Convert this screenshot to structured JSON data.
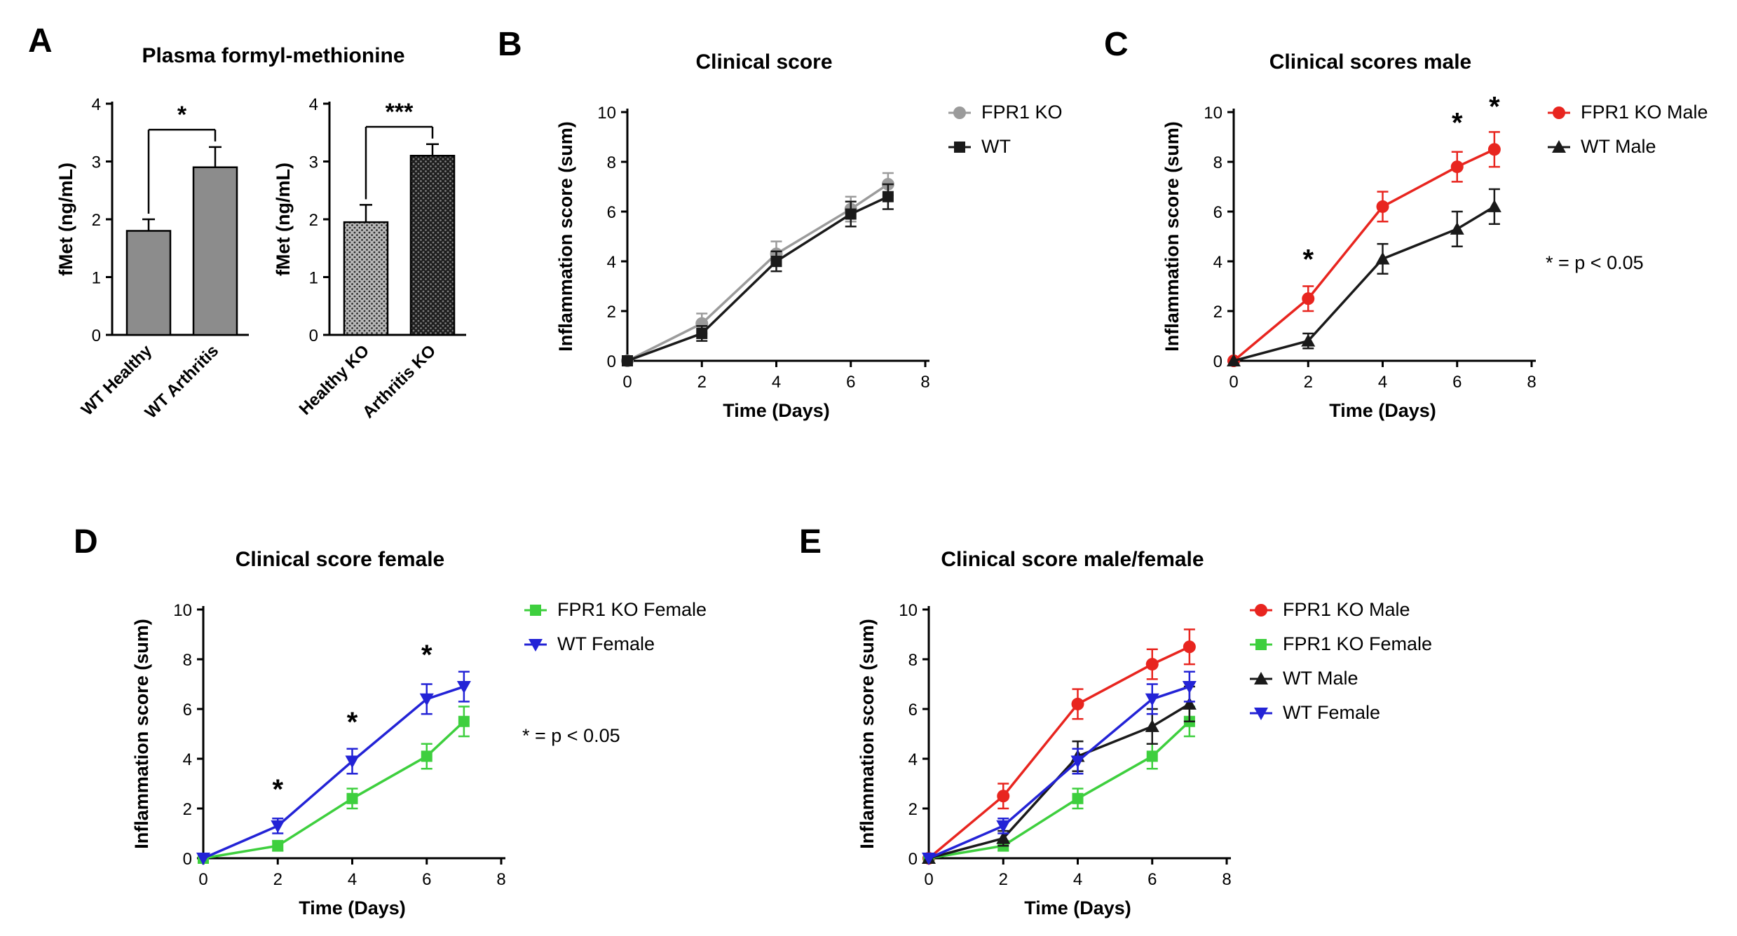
{
  "chart_data": [
    {
      "id": "A",
      "label": "A",
      "title": "Plasma formyl-methionine",
      "charts": [
        {
          "type": "bar",
          "ylabel": "fMet (ng/mL)",
          "ylim": [
            0,
            4
          ],
          "yticks": [
            0,
            1,
            2,
            3,
            4
          ],
          "categories": [
            "WT Healthy",
            "WT Arthritis"
          ],
          "values": [
            1.8,
            2.9
          ],
          "errors": [
            0.2,
            0.35
          ],
          "bar_fills": [
            "solid:#8c8c8c",
            "solid:#8c8c8c"
          ],
          "bar_stroke": "#000000",
          "sig": {
            "text": "*",
            "y": 3.55
          }
        },
        {
          "type": "bar",
          "ylabel": "fMet (ng/mL)",
          "ylim": [
            0,
            4
          ],
          "yticks": [
            0,
            1,
            2,
            3,
            4
          ],
          "categories": [
            "Healthy KO",
            "Arthritis KO"
          ],
          "values": [
            1.95,
            3.1
          ],
          "errors": [
            0.3,
            0.2
          ],
          "bar_fills": [
            "dots:#b8b8b8:#2d2d2d",
            "dots:#1e1e1e:#7d7d7d"
          ],
          "bar_stroke": "#000000",
          "sig": {
            "text": "***",
            "y": 3.6
          }
        }
      ]
    },
    {
      "id": "B",
      "label": "B",
      "title": "Clinical score",
      "chart": {
        "type": "line",
        "xlabel": "Time (Days)",
        "ylabel": "Inflammation score (sum)",
        "xlim": [
          0,
          8
        ],
        "xticks": [
          0,
          2,
          4,
          6,
          8
        ],
        "ylim": [
          0,
          10
        ],
        "yticks": [
          0,
          2,
          4,
          6,
          8,
          10
        ],
        "x": [
          0,
          2,
          4,
          6,
          7
        ],
        "series": [
          {
            "name": "FPR1 KO",
            "color": "#9b9b9b",
            "marker": "circle",
            "values": [
              0,
              1.5,
              4.3,
              6.1,
              7.1
            ],
            "errors": [
              0,
              0.4,
              0.5,
              0.5,
              0.45
            ]
          },
          {
            "name": "WT",
            "color": "#1a1a1a",
            "marker": "square",
            "values": [
              0,
              1.1,
              4.0,
              5.9,
              6.6
            ],
            "errors": [
              0,
              0.3,
              0.4,
              0.5,
              0.5
            ]
          }
        ],
        "annotations": []
      }
    },
    {
      "id": "C",
      "label": "C",
      "title": "Clinical scores male",
      "note": "* = p < 0.05",
      "chart": {
        "type": "line",
        "xlabel": "Time (Days)",
        "ylabel": "Inflammation score (sum)",
        "xlim": [
          0,
          8
        ],
        "xticks": [
          0,
          2,
          4,
          6,
          8
        ],
        "ylim": [
          0,
          10
        ],
        "yticks": [
          0,
          2,
          4,
          6,
          8,
          10
        ],
        "x": [
          0,
          2,
          4,
          6,
          7
        ],
        "series": [
          {
            "name": "FPR1 KO Male",
            "color": "#e8251f",
            "marker": "circle",
            "values": [
              0,
              2.5,
              6.2,
              7.8,
              8.5
            ],
            "errors": [
              0,
              0.5,
              0.6,
              0.6,
              0.7
            ]
          },
          {
            "name": "WT Male",
            "color": "#1a1a1a",
            "marker": "triangle-up",
            "values": [
              0,
              0.8,
              4.1,
              5.3,
              6.2
            ],
            "errors": [
              0,
              0.3,
              0.6,
              0.7,
              0.7
            ]
          }
        ],
        "annotations": [
          {
            "x": 2,
            "y": 3.7,
            "text": "*"
          },
          {
            "x": 6,
            "y": 9.2,
            "text": "*"
          },
          {
            "x": 7,
            "y": 9.85,
            "text": "*"
          }
        ]
      }
    },
    {
      "id": "D",
      "label": "D",
      "title": "Clinical score female",
      "note": "* = p < 0.05",
      "chart": {
        "type": "line",
        "xlabel": "Time (Days)",
        "ylabel": "Inflammation score (sum)",
        "xlim": [
          0,
          8
        ],
        "xticks": [
          0,
          2,
          4,
          6,
          8
        ],
        "ylim": [
          0,
          10
        ],
        "yticks": [
          0,
          2,
          4,
          6,
          8,
          10
        ],
        "x": [
          0,
          2,
          4,
          6,
          7
        ],
        "series": [
          {
            "name": "FPR1 KO Female",
            "color": "#3ecf3e",
            "marker": "square",
            "values": [
              0,
              0.5,
              2.4,
              4.1,
              5.5
            ],
            "errors": [
              0,
              0.2,
              0.4,
              0.5,
              0.6
            ]
          },
          {
            "name": "WT Female",
            "color": "#2323d6",
            "marker": "triangle-down",
            "values": [
              0,
              1.3,
              3.9,
              6.4,
              6.9
            ],
            "errors": [
              0,
              0.3,
              0.5,
              0.6,
              0.6
            ]
          }
        ],
        "annotations": [
          {
            "x": 2,
            "y": 2.4,
            "text": "*"
          },
          {
            "x": 4,
            "y": 5.1,
            "text": "*"
          },
          {
            "x": 6,
            "y": 7.8,
            "text": "*"
          }
        ]
      }
    },
    {
      "id": "E",
      "label": "E",
      "title": "Clinical score male/female",
      "chart": {
        "type": "line",
        "xlabel": "Time (Days)",
        "ylabel": "Inflammation score (sum)",
        "xlim": [
          0,
          8
        ],
        "xticks": [
          0,
          2,
          4,
          6,
          8
        ],
        "ylim": [
          0,
          10
        ],
        "yticks": [
          0,
          2,
          4,
          6,
          8,
          10
        ],
        "x": [
          0,
          2,
          4,
          6,
          7
        ],
        "series": [
          {
            "name": "FPR1 KO Male",
            "color": "#e8251f",
            "marker": "circle",
            "values": [
              0,
              2.5,
              6.2,
              7.8,
              8.5
            ],
            "errors": [
              0,
              0.5,
              0.6,
              0.6,
              0.7
            ]
          },
          {
            "name": "FPR1 KO Female",
            "color": "#3ecf3e",
            "marker": "square",
            "values": [
              0,
              0.5,
              2.4,
              4.1,
              5.5
            ],
            "errors": [
              0,
              0.2,
              0.4,
              0.5,
              0.6
            ]
          },
          {
            "name": "WT Male",
            "color": "#1a1a1a",
            "marker": "triangle-up",
            "values": [
              0,
              0.8,
              4.1,
              5.3,
              6.2
            ],
            "errors": [
              0,
              0.3,
              0.6,
              0.7,
              0.7
            ]
          },
          {
            "name": "WT Female",
            "color": "#2323d6",
            "marker": "triangle-down",
            "values": [
              0,
              1.3,
              3.9,
              6.4,
              6.9
            ],
            "errors": [
              0,
              0.3,
              0.5,
              0.6,
              0.6
            ]
          }
        ],
        "annotations": []
      }
    }
  ]
}
